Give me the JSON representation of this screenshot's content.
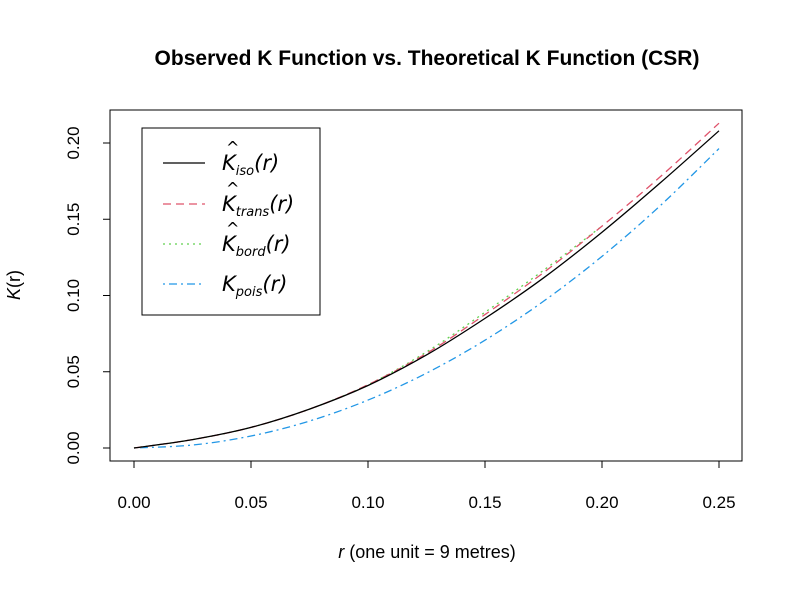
{
  "chart_data": {
    "type": "line",
    "title": "Observed K Function vs. Theoretical K Function (CSR)",
    "xlabel": {
      "var": "r",
      "rest": " (one unit = 9 metres)"
    },
    "ylabel": {
      "var": "K",
      "arg": "(r)"
    },
    "xlim": [
      0,
      0.25
    ],
    "ylim": [
      0,
      0.2
    ],
    "xticks": [
      "0.00",
      "0.05",
      "0.10",
      "0.15",
      "0.20",
      "0.25"
    ],
    "yticks": [
      "0.00",
      "0.05",
      "0.10",
      "0.15",
      "0.20"
    ],
    "grid": false,
    "legend_position": "top-left",
    "x": [
      0,
      0.025,
      0.05,
      0.075,
      0.1,
      0.125,
      0.15,
      0.175,
      0.2,
      0.225,
      0.25
    ],
    "series": [
      {
        "symbol": "K",
        "hat": true,
        "sub": "iso",
        "arg": "(r)",
        "color": "#000000",
        "dash": "solid",
        "values": [
          0,
          0.0055,
          0.0135,
          0.0255,
          0.041,
          0.061,
          0.085,
          0.1115,
          0.1415,
          0.174,
          0.208
        ]
      },
      {
        "symbol": "K",
        "hat": true,
        "sub": "trans",
        "arg": "(r)",
        "color": "#DF536B",
        "dash": "dashed",
        "values": [
          0,
          0.0055,
          0.0135,
          0.0255,
          0.0415,
          0.062,
          0.0875,
          0.115,
          0.1455,
          0.178,
          0.213
        ]
      },
      {
        "symbol": "K",
        "hat": true,
        "sub": "bord",
        "arg": "(r)",
        "color": "#61D04F",
        "dash": "dotted",
        "values": [
          0,
          0.0055,
          0.0135,
          0.0255,
          0.0415,
          0.063,
          0.089,
          0.1165,
          0.1455,
          null,
          null
        ]
      },
      {
        "symbol": "K",
        "hat": false,
        "sub": "pois",
        "arg": "(r)",
        "color": "#2297E6",
        "dash": "dotdash",
        "values": [
          0,
          0.00196,
          0.00785,
          0.01767,
          0.03142,
          0.04909,
          0.07069,
          0.09621,
          0.12566,
          0.15904,
          0.19635
        ]
      }
    ]
  }
}
